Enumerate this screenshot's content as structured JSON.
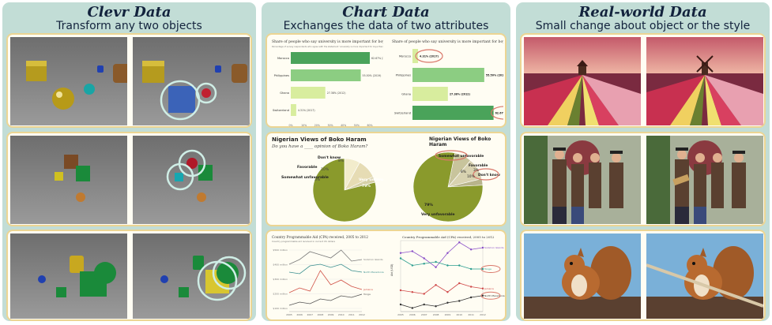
{
  "panels": [
    {
      "title": "Clevr Data",
      "subtitle": "Transform any two objects"
    },
    {
      "title": "Chart Data",
      "subtitle": "Exchanges the data of two attributes"
    },
    {
      "title": "Real-world Data",
      "subtitle": "Small change about object or the style"
    }
  ],
  "bar_left": {
    "title": "Share of people who say university is more important for boys",
    "note": "Percentage of survey respondents who agree with the statement 'university is more important for boys than for girls'",
    "categories": [
      "Morocco",
      "Philippines",
      "Ghana",
      "Switzerland"
    ],
    "values": [
      62.67,
      55.5,
      27.38,
      4.31
    ],
    "value_labels": [
      "62.67% (2017)",
      "55.50% (2019)",
      "27.38% (2012)",
      "4.31% (2017)"
    ],
    "axis": [
      "0%",
      "10%",
      "20%",
      "30%",
      "40%",
      "50%",
      "60%"
    ]
  },
  "bar_right": {
    "title": "Share of people who say university is more important for boys",
    "categories": [
      "Morocco",
      "Philippines",
      "Ghana",
      "Switzerland"
    ],
    "values": [
      4.31,
      55.5,
      27.38,
      62.67
    ],
    "value_labels": [
      "4.31% (2017)",
      "55.50% (2019)",
      "27.38% (2012)",
      "62.67% (2017)"
    ],
    "axis": [
      "0",
      "10",
      "20",
      "30",
      "40",
      "50",
      "60"
    ]
  },
  "pie_left": {
    "title": "Nigerian Views of Boko Haram",
    "question": "Do you have a ____ opinion of Boko Haram?",
    "labels": [
      "Don't know",
      "Favorable",
      "Somewhat unfavorable",
      "Very unfavorable"
    ],
    "values": [
      8,
      10,
      3,
      79
    ],
    "value_labels": [
      "8%",
      "10%",
      "3%",
      "79%"
    ],
    "very_label": "Very unfavorable",
    "somewhat_label": "Somewhat unfavorable"
  },
  "pie_right": {
    "title": "Nigerian Views of Boko Haram",
    "labels": [
      "Somewhat unfavorable",
      "Favorable",
      "Don't know",
      "Very unfavorable"
    ],
    "value_labels": [
      "8%",
      "10%",
      "3%",
      "79%"
    ]
  },
  "line_left": {
    "title": "Country Programmable Aid (CPA) received, 2005 to 2012",
    "note": "Country programmable aid received in current US dollars",
    "x": [
      "2005",
      "2006",
      "2007",
      "2008",
      "2009",
      "2010",
      "2011",
      "2012"
    ],
    "y_ticks": [
      "$500 million",
      "$400 million",
      "$300 million",
      "$200 million",
      "$100 million"
    ],
    "series": [
      {
        "name": "Solomon Islands",
        "color": "#7a7a7a",
        "values": [
          300,
          330,
          380,
          360,
          340,
          390,
          320,
          330
        ]
      },
      {
        "name": "North Macedonia",
        "color": "#3a8f8f",
        "values": [
          250,
          240,
          290,
          300,
          280,
          300,
          260,
          250
        ]
      },
      {
        "name": "Jamaica",
        "color": "#d05045",
        "values": [
          120,
          150,
          130,
          260,
          170,
          200,
          160,
          140
        ]
      },
      {
        "name": "Tonga",
        "color": "#555555",
        "values": [
          40,
          60,
          50,
          80,
          70,
          100,
          90,
          110
        ]
      }
    ]
  },
  "line_right": {
    "title": "Country Programmable Aid (CPA) received, 2005 to 2012",
    "ylabel": "Aid (USD)",
    "x": [
      "2005",
      "2006",
      "2007",
      "2008",
      "2009",
      "2010",
      "2011",
      "2012"
    ],
    "series": [
      {
        "name": "Solomon Islands",
        "color": "#8a4fc8",
        "values": [
          330,
          340,
          300,
          250,
          330,
          390,
          350,
          360
        ]
      },
      {
        "name": "Tonga",
        "color": "#2a9d8f",
        "values": [
          300,
          260,
          270,
          280,
          260,
          260,
          240,
          240
        ]
      },
      {
        "name": "Jamaica",
        "color": "#d04a4a",
        "values": [
          120,
          110,
          100,
          150,
          110,
          160,
          140,
          130
        ]
      },
      {
        "name": "North Macedonia",
        "color": "#333333",
        "values": [
          40,
          20,
          40,
          30,
          50,
          60,
          80,
          90
        ]
      }
    ]
  },
  "colors": {
    "panel_bg": "#c2ddd6",
    "card_border": "#ecd593",
    "highlight_circle": "#d9776a",
    "clevr_highlight": "#cfeee6",
    "bar_green": "#4aa35a",
    "bar_light": "#8ccd82",
    "bar_pale": "#d8ed9e",
    "pie_olive": "#8a9a2c"
  }
}
